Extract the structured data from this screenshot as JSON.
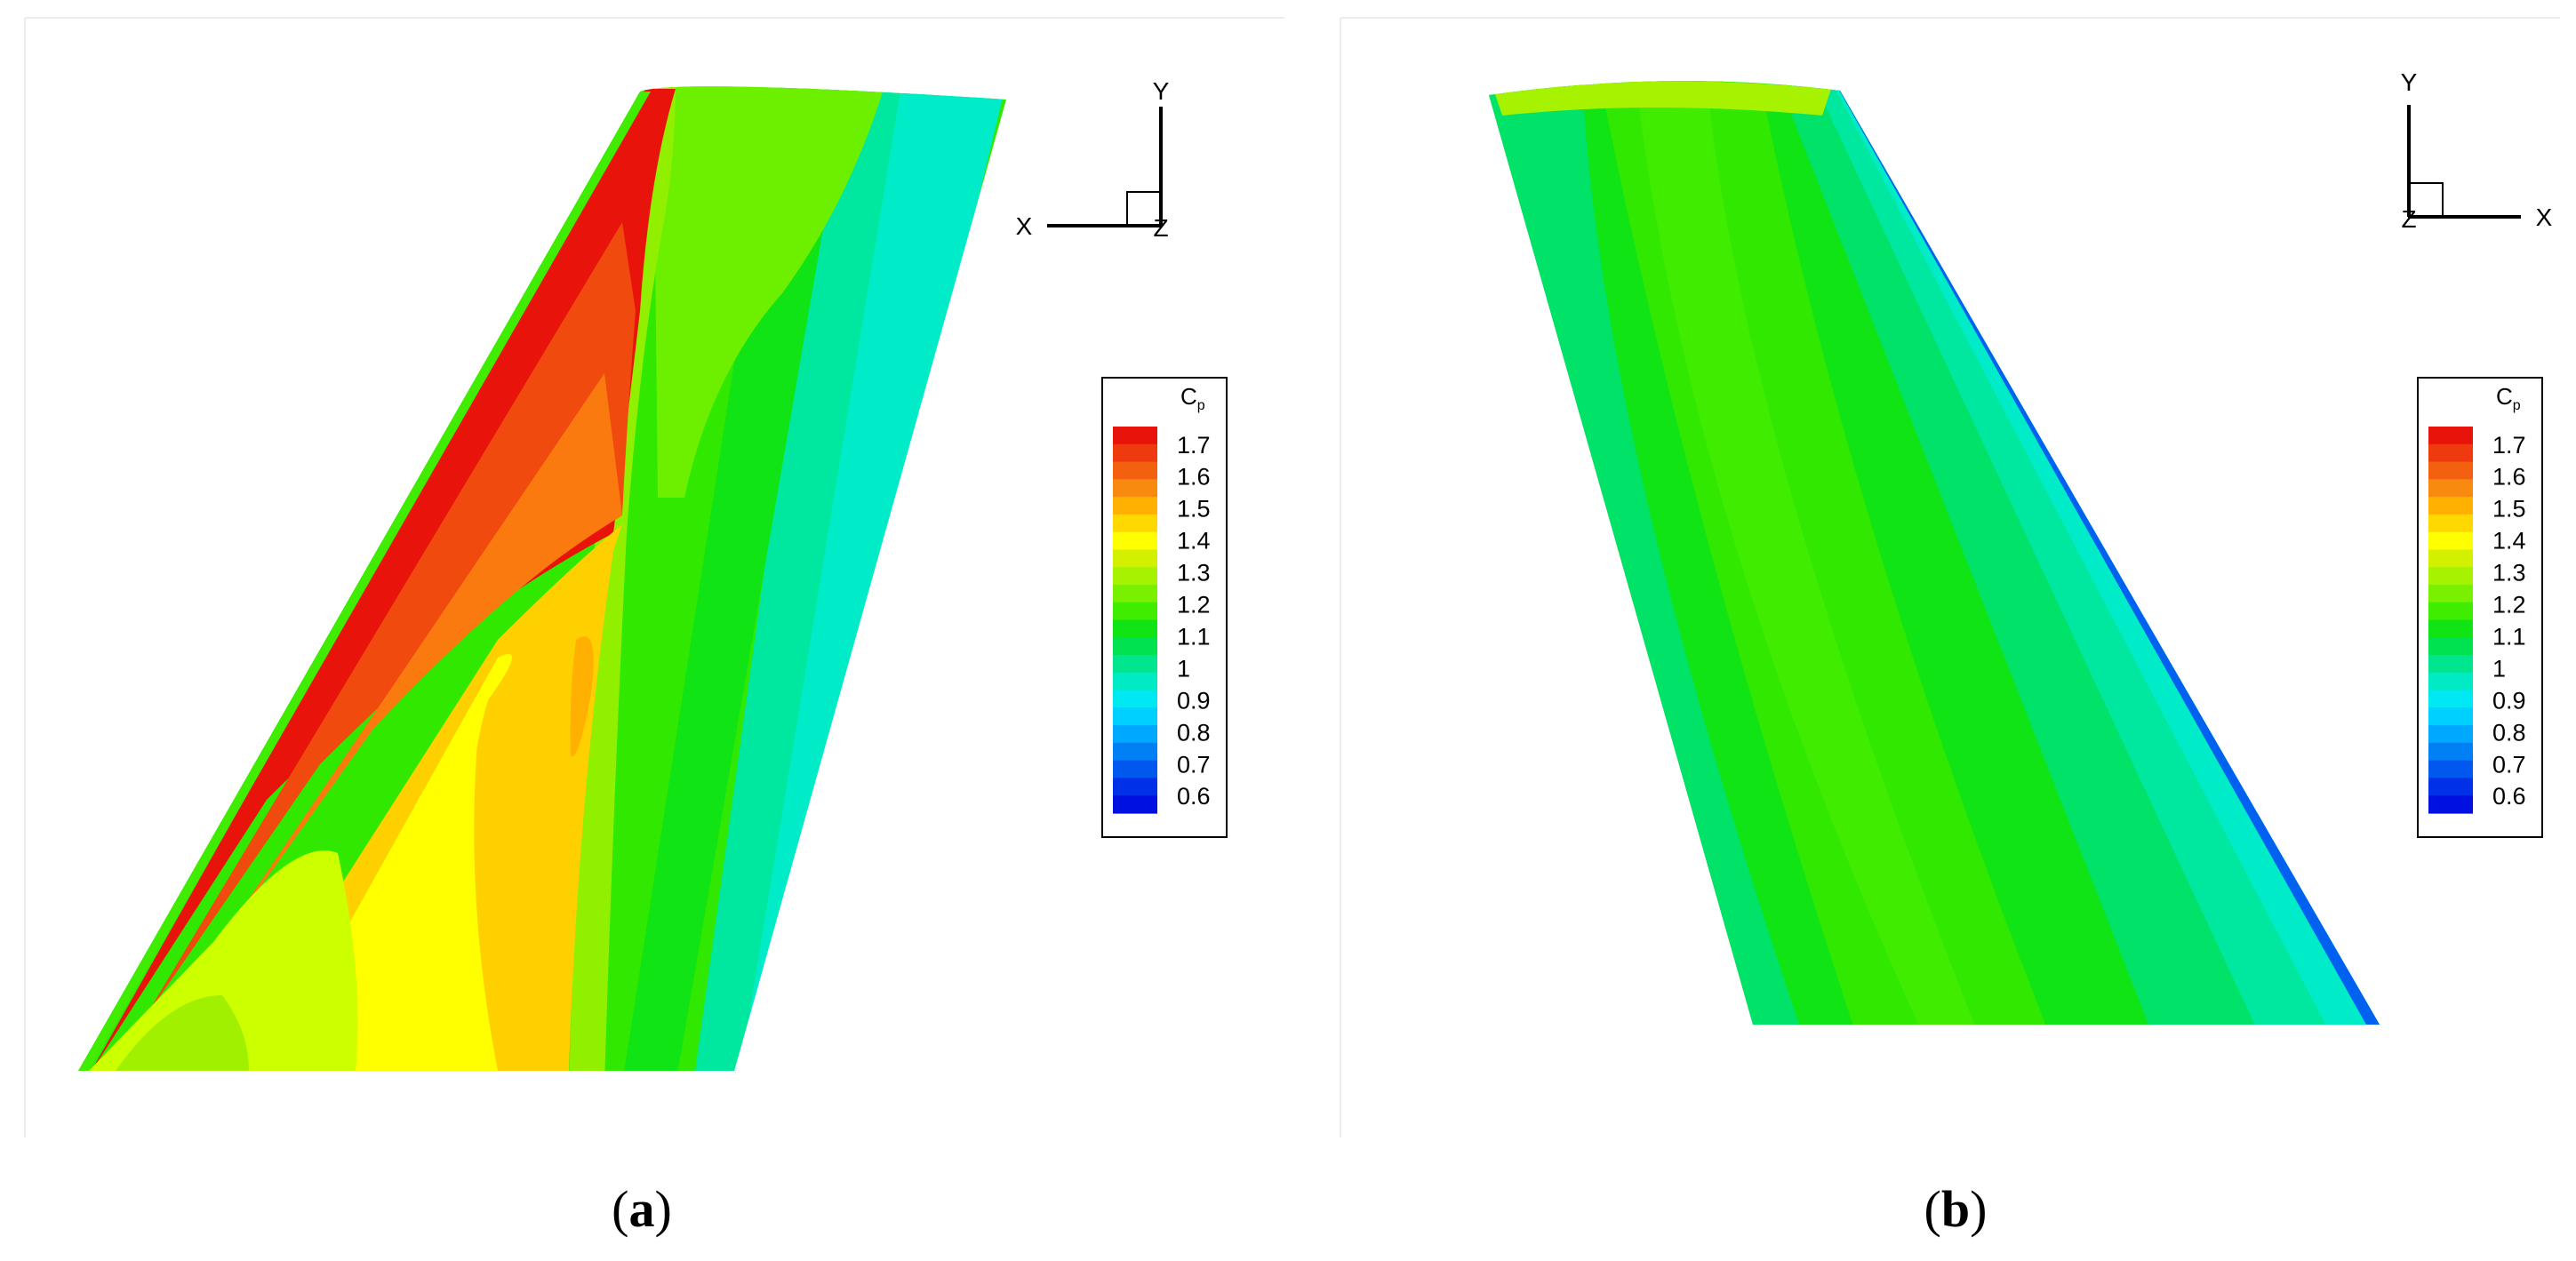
{
  "panels": [
    {
      "id": "a",
      "label_open": "(",
      "label_letter": "a",
      "label_close": ")",
      "axes": {
        "horizontal": "X",
        "vertical": "Y",
        "normal": "Z"
      }
    },
    {
      "id": "b",
      "label_open": "(",
      "label_letter": "b",
      "label_close": ")",
      "axes": {
        "horizontal": "X",
        "vertical": "Y",
        "normal": "Z"
      }
    }
  ],
  "legend": {
    "title_main": "C",
    "title_sub": "p",
    "tick_labels": [
      "1.7",
      "1.6",
      "1.5",
      "1.4",
      "1.3",
      "1.2",
      "1.1",
      "1",
      "0.9",
      "0.8",
      "0.7",
      "0.6"
    ],
    "colors_top_to_bottom": [
      "#e8140c",
      "#ee3a0e",
      "#f26010",
      "#f88a10",
      "#ffb000",
      "#ffd800",
      "#ffff00",
      "#d2f000",
      "#a6f200",
      "#78f000",
      "#40ec00",
      "#10e414",
      "#00e250",
      "#00e68e",
      "#00eac4",
      "#00e8f2",
      "#00d0ff",
      "#00a8ff",
      "#0080f4",
      "#0058ee",
      "#0030e8",
      "#0010e0"
    ]
  },
  "colors": {
    "red": "#e8140c",
    "red_orange": "#f04a0e",
    "orange": "#fa7a10",
    "dark_yellow": "#ffd000",
    "yellow": "#ffff00",
    "yellow_green": "#ccff00",
    "green_yellow": "#90f000",
    "light_green": "#6cf000",
    "green": "#30e800",
    "green2": "#10e414",
    "green_cyan": "#00e268",
    "mint": "#00e8a0",
    "cyan": "#00ecc8",
    "blue": "#0060f0"
  }
}
